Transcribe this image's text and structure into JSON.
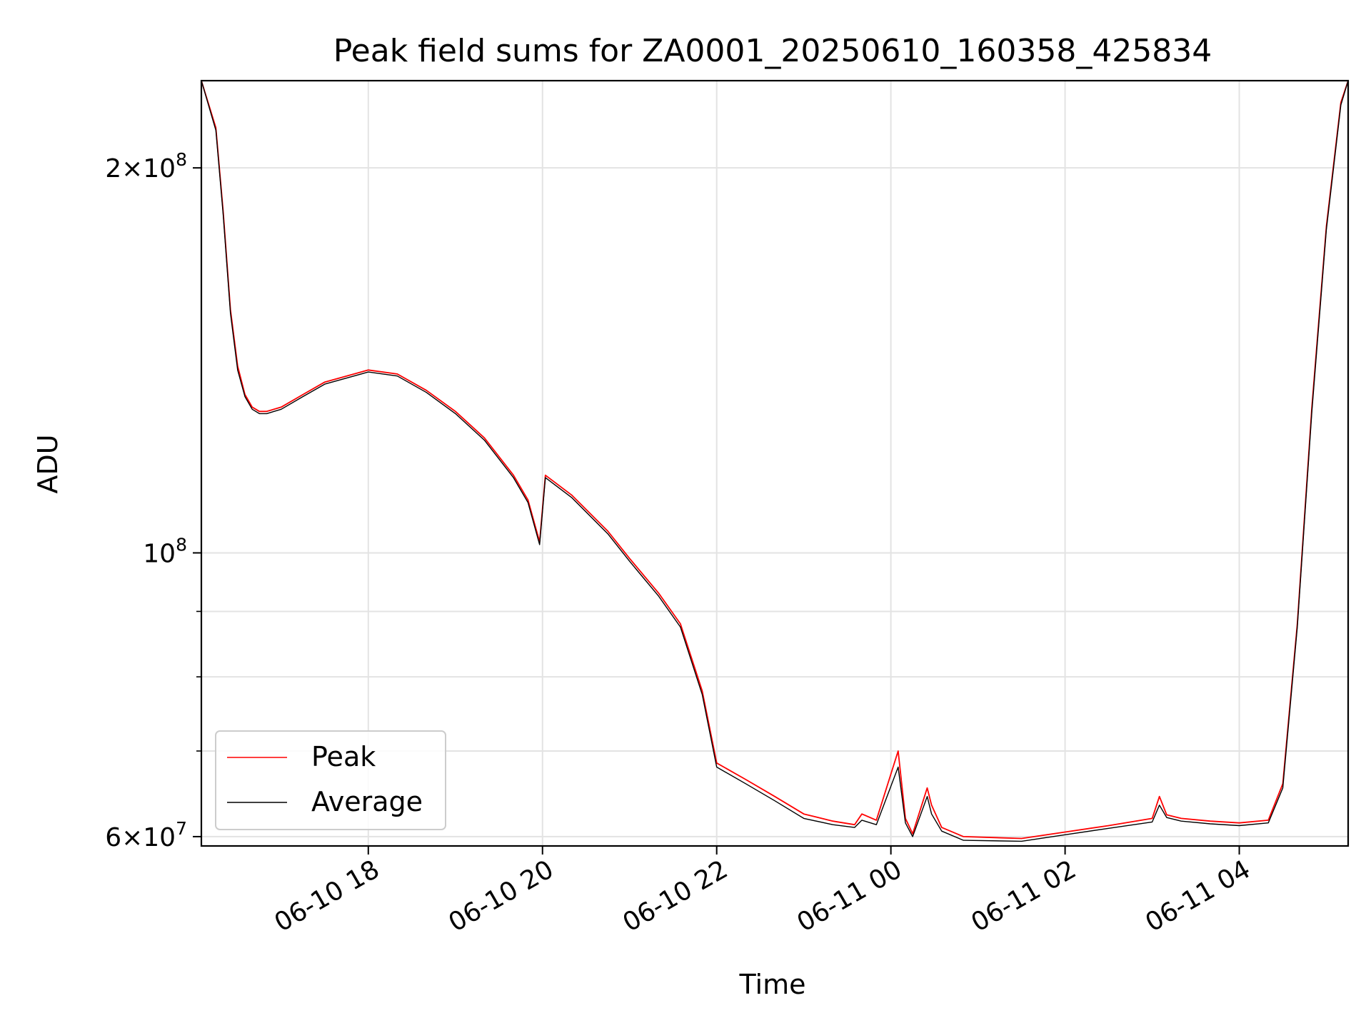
{
  "chart_data": {
    "type": "line",
    "title": "Peak field sums for ZA0001_20250610_160358_425834",
    "xlabel": "Time",
    "ylabel": "ADU",
    "yscale": "log",
    "xlim": [
      "2025-06-10 16:05",
      "2025-06-11 05:15"
    ],
    "ylim": [
      59000000,
      234000000
    ],
    "grid": true,
    "legend_position": "lower-left",
    "x_ticks": [
      {
        "value": "2025-06-10 18:00",
        "label": "06-10 18"
      },
      {
        "value": "2025-06-10 20:00",
        "label": "06-10 20"
      },
      {
        "value": "2025-06-10 22:00",
        "label": "06-10 22"
      },
      {
        "value": "2025-06-11 00:00",
        "label": "06-11 00"
      },
      {
        "value": "2025-06-11 02:00",
        "label": "06-11 02"
      },
      {
        "value": "2025-06-11 04:00",
        "label": "06-11 04"
      }
    ],
    "y_ticks": [
      {
        "value": 60000000,
        "label_base": "6",
        "label_exp": "7",
        "label_mode": "mult"
      },
      {
        "value": 100000000,
        "label_base": "",
        "label_exp": "8",
        "label_mode": "pow"
      },
      {
        "value": 200000000,
        "label_base": "2",
        "label_exp": "8",
        "label_mode": "mult"
      }
    ],
    "y_minor_ticks": [
      70000000,
      80000000,
      90000000
    ],
    "series": [
      {
        "name": "Peak",
        "color": "#ff0000",
        "x": [
          "2025-06-10 16:05",
          "2025-06-10 16:15",
          "2025-06-10 16:20",
          "2025-06-10 16:25",
          "2025-06-10 16:30",
          "2025-06-10 16:35",
          "2025-06-10 16:40",
          "2025-06-10 16:45",
          "2025-06-10 16:50",
          "2025-06-10 17:00",
          "2025-06-10 17:15",
          "2025-06-10 17:30",
          "2025-06-10 18:00",
          "2025-06-10 18:20",
          "2025-06-10 18:40",
          "2025-06-10 19:00",
          "2025-06-10 19:20",
          "2025-06-10 19:40",
          "2025-06-10 19:50",
          "2025-06-10 19:58",
          "2025-06-10 20:02",
          "2025-06-10 20:20",
          "2025-06-10 20:45",
          "2025-06-10 21:00",
          "2025-06-10 21:20",
          "2025-06-10 21:35",
          "2025-06-10 21:50",
          "2025-06-10 22:00",
          "2025-06-10 22:20",
          "2025-06-10 22:40",
          "2025-06-10 23:00",
          "2025-06-10 23:20",
          "2025-06-10 23:35",
          "2025-06-10 23:40",
          "2025-06-10 23:50",
          "2025-06-11 00:05",
          "2025-06-11 00:10",
          "2025-06-11 00:15",
          "2025-06-11 00:25",
          "2025-06-11 00:28",
          "2025-06-11 00:35",
          "2025-06-11 00:50",
          "2025-06-11 01:30",
          "2025-06-11 02:00",
          "2025-06-11 02:30",
          "2025-06-11 03:00",
          "2025-06-11 03:05",
          "2025-06-11 03:10",
          "2025-06-11 03:20",
          "2025-06-11 03:40",
          "2025-06-11 04:00",
          "2025-06-11 04:20",
          "2025-06-11 04:30",
          "2025-06-11 04:40",
          "2025-06-11 04:50",
          "2025-06-11 05:00",
          "2025-06-11 05:10",
          "2025-06-11 05:15"
        ],
        "y": [
          234000000,
          215000000,
          185000000,
          155000000,
          140000000,
          133000000,
          130000000,
          129000000,
          129000000,
          130000000,
          133000000,
          136000000,
          139000000,
          138000000,
          134000000,
          129000000,
          123000000,
          115000000,
          110000000,
          102000000,
          115000000,
          111000000,
          104000000,
          99000000,
          93000000,
          88000000,
          78000000,
          68500000,
          66500000,
          64500000,
          62500000,
          61700000,
          61300000,
          62500000,
          61800000,
          70000000,
          62000000,
          60300000,
          65500000,
          63500000,
          61000000,
          60000000,
          59800000,
          60500000,
          61200000,
          62000000,
          64500000,
          62400000,
          62000000,
          61700000,
          61500000,
          61800000,
          66000000,
          88000000,
          130000000,
          180000000,
          225000000,
          234000000
        ]
      },
      {
        "name": "Average",
        "color": "#000000",
        "x": [
          "2025-06-10 16:05",
          "2025-06-10 16:15",
          "2025-06-10 16:20",
          "2025-06-10 16:25",
          "2025-06-10 16:30",
          "2025-06-10 16:35",
          "2025-06-10 16:40",
          "2025-06-10 16:45",
          "2025-06-10 16:50",
          "2025-06-10 17:00",
          "2025-06-10 17:15",
          "2025-06-10 17:30",
          "2025-06-10 18:00",
          "2025-06-10 18:20",
          "2025-06-10 18:40",
          "2025-06-10 19:00",
          "2025-06-10 19:20",
          "2025-06-10 19:40",
          "2025-06-10 19:50",
          "2025-06-10 19:58",
          "2025-06-10 20:02",
          "2025-06-10 20:20",
          "2025-06-10 20:45",
          "2025-06-10 21:00",
          "2025-06-10 21:20",
          "2025-06-10 21:35",
          "2025-06-10 21:50",
          "2025-06-10 22:00",
          "2025-06-10 22:20",
          "2025-06-10 22:40",
          "2025-06-10 23:00",
          "2025-06-10 23:20",
          "2025-06-10 23:35",
          "2025-06-10 23:40",
          "2025-06-10 23:50",
          "2025-06-11 00:05",
          "2025-06-11 00:10",
          "2025-06-11 00:15",
          "2025-06-11 00:25",
          "2025-06-11 00:28",
          "2025-06-11 00:35",
          "2025-06-11 00:50",
          "2025-06-11 01:30",
          "2025-06-11 02:00",
          "2025-06-11 02:30",
          "2025-06-11 03:00",
          "2025-06-11 03:05",
          "2025-06-11 03:10",
          "2025-06-11 03:20",
          "2025-06-11 03:40",
          "2025-06-11 04:00",
          "2025-06-11 04:20",
          "2025-06-11 04:30",
          "2025-06-11 04:40",
          "2025-06-11 04:50",
          "2025-06-11 05:00",
          "2025-06-11 05:10",
          "2025-06-11 05:15"
        ],
        "y": [
          234000000,
          214000000,
          184000000,
          154000000,
          139000000,
          132500000,
          129500000,
          128500000,
          128500000,
          129500000,
          132500000,
          135500000,
          138500000,
          137500000,
          133500000,
          128500000,
          122500000,
          114500000,
          109500000,
          101500000,
          114500000,
          110500000,
          103500000,
          98500000,
          92500000,
          87500000,
          77500000,
          68000000,
          66000000,
          64000000,
          62000000,
          61300000,
          61000000,
          61800000,
          61300000,
          68000000,
          61500000,
          60000000,
          64500000,
          62500000,
          60600000,
          59600000,
          59500000,
          60200000,
          60900000,
          61600000,
          63500000,
          62100000,
          61700000,
          61400000,
          61200000,
          61500000,
          65500000,
          87500000,
          129000000,
          179000000,
          224000000,
          234000000
        ]
      }
    ]
  }
}
